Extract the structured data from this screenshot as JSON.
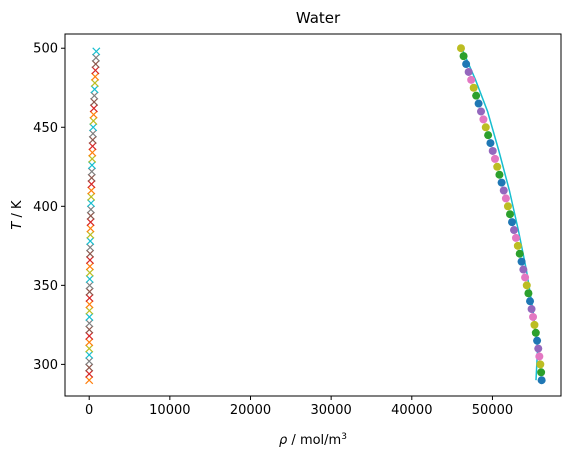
{
  "chart_data": {
    "type": "scatter",
    "title": "Water",
    "xlabel": {
      "symbol": "ρ",
      "unit": " / mol/m",
      "exp": "3"
    },
    "ylabel": {
      "symbol": "T",
      "unit": " / K"
    },
    "xlim": [
      -3000,
      58500
    ],
    "ylim": [
      280,
      509
    ],
    "xticks": [
      0,
      10000,
      20000,
      30000,
      40000,
      50000
    ],
    "yticks": [
      300,
      350,
      400,
      450,
      500
    ],
    "grid": false,
    "legend": "none",
    "liquid_line": {
      "color": "#17becf",
      "x": [
        55400,
        55600,
        55000,
        54200,
        53200,
        52100,
        50800,
        49400,
        47900,
        46200
      ],
      "y": [
        290,
        310,
        335,
        360,
        385,
        410,
        435,
        460,
        480,
        500
      ]
    },
    "liquid_points": {
      "colors": [
        "#1f77b4",
        "#2ca02c",
        "#bcbd22",
        "#e377c2",
        "#9467bd"
      ],
      "T_start": 290,
      "T_end": 500,
      "T_step": 5,
      "rho_at_290": 56100,
      "rho_at_500": 46100,
      "curve_exponent": 1.35
    },
    "vapor_points": {
      "colors": [
        "#ff7f0e",
        "#d62728",
        "#8c564b",
        "#7f7f7f",
        "#17becf",
        "#bcbd22"
      ],
      "T_start": 290,
      "T_end": 500,
      "T_step": 4,
      "rho_min": 0,
      "rho_max": 900
    }
  }
}
